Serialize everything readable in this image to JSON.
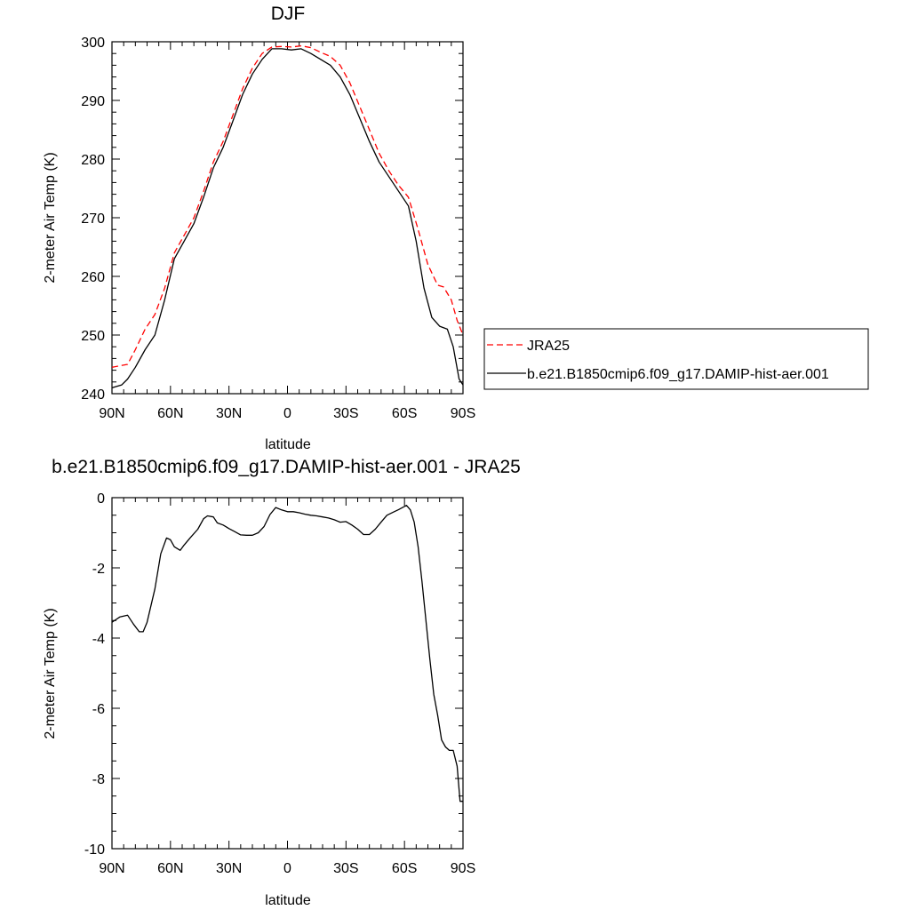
{
  "chart_data": [
    {
      "type": "line",
      "title": "DJF",
      "xlabel": "latitude",
      "ylabel": "2-meter Air Temp (K)",
      "xlim": [
        90,
        -90
      ],
      "ylim": [
        240,
        300
      ],
      "x_ticks": [
        90,
        60,
        30,
        0,
        -30,
        -60,
        -90
      ],
      "x_tick_labels": [
        "90N",
        "60N",
        "30N",
        "0",
        "30S",
        "60S",
        "90S"
      ],
      "y_ticks": [
        240,
        250,
        260,
        270,
        280,
        290,
        300
      ],
      "y_tick_labels": [
        "240",
        "250",
        "260",
        "270",
        "280",
        "290",
        "300"
      ],
      "legend_position": "right",
      "series": [
        {
          "name": "JRA25",
          "color": "#ff0000",
          "dash": "dashed",
          "x": [
            90,
            82,
            78,
            73,
            68,
            63,
            58,
            53,
            48,
            43,
            38,
            33,
            28,
            23,
            18,
            13,
            8,
            3,
            -2,
            -7,
            -12,
            -17,
            -22,
            -27,
            -32,
            -37,
            -42,
            -47,
            -52,
            -57,
            -62,
            -67,
            -72,
            -77,
            -80,
            -84,
            -87,
            -90
          ],
          "y": [
            244.5,
            245.0,
            247.5,
            251.0,
            253.5,
            258.0,
            264.0,
            267.0,
            270.0,
            274.5,
            279.5,
            283.0,
            287.5,
            292.0,
            295.5,
            298.0,
            299.1,
            299.2,
            299.1,
            299.3,
            299.0,
            298.2,
            297.5,
            296.0,
            293.0,
            289.0,
            285.0,
            281.0,
            278.0,
            275.5,
            273.5,
            268.0,
            262.0,
            258.5,
            258.2,
            256.0,
            252.5,
            250.0
          ]
        },
        {
          "name": "b.e21.B1850cmip6.f09_g17.DAMIP-hist-aer.001",
          "color": "#000000",
          "dash": "solid",
          "x": [
            90,
            85,
            82,
            78,
            73,
            68,
            63,
            58,
            53,
            48,
            43,
            38,
            33,
            28,
            23,
            18,
            13,
            8,
            3,
            -2,
            -7,
            -12,
            -17,
            -22,
            -27,
            -32,
            -37,
            -42,
            -47,
            -52,
            -57,
            -62,
            -66,
            -70,
            -74,
            -78,
            -82,
            -85,
            -88,
            -90
          ],
          "y": [
            241.0,
            241.5,
            242.5,
            244.5,
            247.5,
            250.0,
            256.0,
            263.0,
            266.0,
            269.0,
            273.5,
            278.5,
            282.0,
            286.5,
            291.0,
            294.5,
            297.0,
            298.8,
            298.8,
            298.6,
            298.8,
            298.0,
            297.0,
            296.0,
            294.0,
            291.0,
            287.0,
            283.0,
            279.5,
            277.0,
            274.5,
            272.0,
            266.0,
            258.0,
            253.0,
            251.5,
            251.0,
            248.0,
            242.5,
            241.5
          ]
        }
      ]
    },
    {
      "type": "line",
      "title": "b.e21.B1850cmip6.f09_g17.DAMIP-hist-aer.001 - JRA25",
      "xlabel": "latitude",
      "ylabel": "2-meter Air Temp (K)",
      "xlim": [
        90,
        -90
      ],
      "ylim": [
        -10,
        0
      ],
      "x_ticks": [
        90,
        60,
        30,
        0,
        -30,
        -60,
        -90
      ],
      "x_tick_labels": [
        "90N",
        "60N",
        "30N",
        "0",
        "30S",
        "60S",
        "90S"
      ],
      "y_ticks": [
        -10,
        -8,
        -6,
        -4,
        -2,
        0
      ],
      "y_tick_labels": [
        "-10",
        "-8",
        "-6",
        "-4",
        "-2",
        "0"
      ],
      "series": [
        {
          "color": "#000000",
          "dash": "solid",
          "x": [
            90,
            86,
            82,
            79,
            76,
            74,
            72,
            68,
            65,
            62,
            60,
            58,
            55,
            53,
            50,
            46,
            43,
            41,
            38,
            36,
            33,
            30,
            27,
            24,
            21,
            18,
            15,
            12,
            9,
            6,
            3,
            0,
            -3,
            -6,
            -9,
            -12,
            -15,
            -18,
            -21,
            -24,
            -27,
            -30,
            -33,
            -36,
            -39,
            -42,
            -45,
            -48,
            -51,
            -54,
            -57,
            -59,
            -61,
            -63,
            -65,
            -67,
            -69,
            -71,
            -73,
            -75,
            -77,
            -79,
            -81,
            -83,
            -85,
            -87,
            -88.5,
            -90
          ],
          "y": [
            -3.55,
            -3.4,
            -3.35,
            -3.6,
            -3.82,
            -3.82,
            -3.55,
            -2.6,
            -1.6,
            -1.15,
            -1.2,
            -1.4,
            -1.5,
            -1.35,
            -1.15,
            -0.9,
            -0.6,
            -0.52,
            -0.55,
            -0.72,
            -0.78,
            -0.88,
            -0.97,
            -1.06,
            -1.07,
            -1.07,
            -1.0,
            -0.82,
            -0.48,
            -0.28,
            -0.35,
            -0.4,
            -0.4,
            -0.43,
            -0.47,
            -0.5,
            -0.52,
            -0.55,
            -0.58,
            -0.63,
            -0.7,
            -0.68,
            -0.78,
            -0.9,
            -1.05,
            -1.05,
            -0.9,
            -0.7,
            -0.5,
            -0.42,
            -0.34,
            -0.28,
            -0.22,
            -0.35,
            -0.7,
            -1.4,
            -2.4,
            -3.5,
            -4.6,
            -5.6,
            -6.2,
            -6.9,
            -7.1,
            -7.2,
            -7.2,
            -7.65,
            -8.65,
            -8.65
          ]
        }
      ]
    }
  ]
}
